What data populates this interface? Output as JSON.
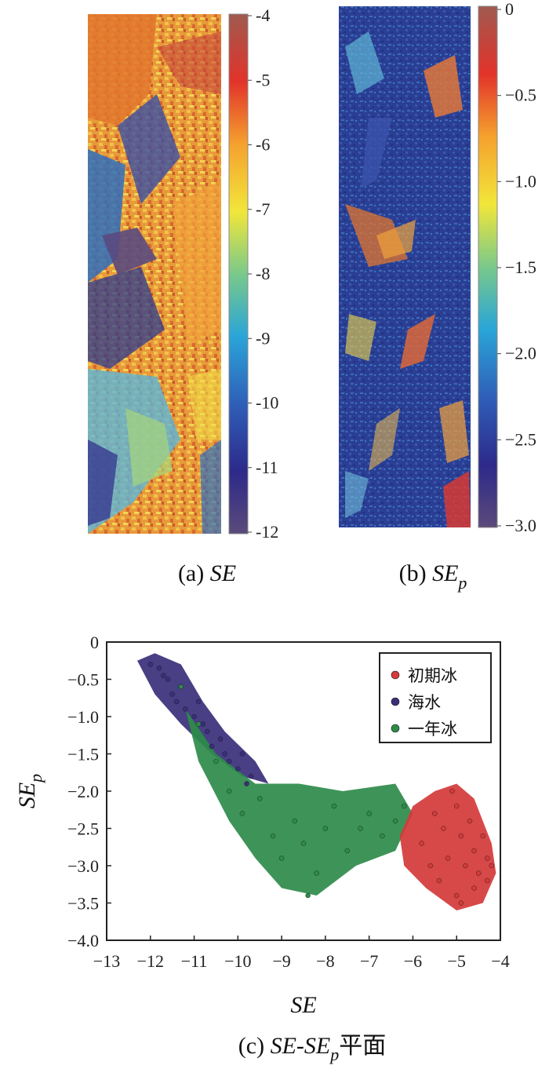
{
  "panel_a": {
    "caption_prefix": "(a) ",
    "caption_var": "SE",
    "colorbar": {
      "ticks": [
        "-4",
        "-5",
        "-6",
        "-7",
        "-8",
        "-9",
        "-10",
        "-11",
        "-12"
      ],
      "range": [
        -12,
        -4
      ]
    }
  },
  "panel_b": {
    "caption_prefix": "(b) ",
    "caption_var": "SE",
    "caption_sub": "p",
    "colorbar": {
      "ticks": [
        "0",
        "−0.5",
        "−1.0",
        "−1.5",
        "−2.0",
        "−2.5",
        "−3.0"
      ],
      "range": [
        -3.0,
        0
      ]
    }
  },
  "panel_c": {
    "caption_prefix": "(c) ",
    "caption_var": "SE-SE",
    "caption_sub": "p",
    "caption_suffix": "平面"
  },
  "chart_data": {
    "type": "scatter",
    "xlabel": "SE",
    "ylabel": "SE",
    "ylabel_sub": "p",
    "xlim": [
      -13,
      -4
    ],
    "ylim": [
      -4.0,
      0
    ],
    "xticks": [
      -13,
      -12,
      -11,
      -10,
      -9,
      -8,
      -7,
      -6,
      -5,
      -4
    ],
    "yticks": [
      0,
      -0.5,
      -1.0,
      -1.5,
      -2.0,
      -2.5,
      -3.0,
      -3.5,
      -4.0
    ],
    "xtick_labels": [
      "−13",
      "−12",
      "−11",
      "−10",
      "−9",
      "−8",
      "−7",
      "−6",
      "−5",
      "−4"
    ],
    "ytick_labels": [
      "0",
      "−0.5",
      "−1.0",
      "−1.5",
      "−2.0",
      "−2.5",
      "−3.0",
      "−3.5",
      "−4.0"
    ],
    "legend_position": "top-right",
    "series": [
      {
        "name": "初期冰",
        "color": "#d43a3a",
        "points": [
          [
            -5.8,
            -2.7
          ],
          [
            -5.5,
            -2.3
          ],
          [
            -5.3,
            -2.5
          ],
          [
            -5.2,
            -2.9
          ],
          [
            -5.0,
            -2.2
          ],
          [
            -4.9,
            -2.6
          ],
          [
            -4.8,
            -3.0
          ],
          [
            -4.7,
            -2.4
          ],
          [
            -4.6,
            -2.8
          ],
          [
            -4.5,
            -3.1
          ],
          [
            -4.4,
            -2.6
          ],
          [
            -4.3,
            -2.9
          ],
          [
            -4.2,
            -3.0
          ],
          [
            -4.6,
            -3.3
          ],
          [
            -5.0,
            -3.4
          ],
          [
            -5.4,
            -3.2
          ],
          [
            -5.6,
            -3.0
          ],
          [
            -5.1,
            -2.0
          ],
          [
            -4.9,
            -3.5
          ],
          [
            -4.3,
            -3.2
          ]
        ]
      },
      {
        "name": "海水",
        "color": "#3a2f7a",
        "points": [
          [
            -12.0,
            -0.3
          ],
          [
            -11.8,
            -0.35
          ],
          [
            -11.6,
            -0.5
          ],
          [
            -11.5,
            -0.7
          ],
          [
            -11.3,
            -0.6
          ],
          [
            -11.2,
            -0.9
          ],
          [
            -11.0,
            -1.0
          ],
          [
            -10.9,
            -0.8
          ],
          [
            -10.7,
            -1.2
          ],
          [
            -10.6,
            -1.4
          ],
          [
            -10.4,
            -1.3
          ],
          [
            -10.2,
            -1.6
          ],
          [
            -10.0,
            -1.7
          ],
          [
            -9.9,
            -1.5
          ],
          [
            -9.7,
            -1.8
          ],
          [
            -11.7,
            -0.45
          ],
          [
            -11.4,
            -0.8
          ],
          [
            -10.8,
            -1.1
          ],
          [
            -10.3,
            -1.5
          ],
          [
            -9.8,
            -1.9
          ]
        ]
      },
      {
        "name": "一年冰",
        "color": "#2e8b4a",
        "points": [
          [
            -11.3,
            -0.6
          ],
          [
            -10.9,
            -1.1
          ],
          [
            -10.5,
            -1.6
          ],
          [
            -10.2,
            -2.0
          ],
          [
            -9.9,
            -2.3
          ],
          [
            -9.5,
            -2.1
          ],
          [
            -9.2,
            -2.6
          ],
          [
            -9.0,
            -2.9
          ],
          [
            -8.7,
            -2.4
          ],
          [
            -8.5,
            -2.7
          ],
          [
            -8.2,
            -3.1
          ],
          [
            -8.0,
            -2.5
          ],
          [
            -7.8,
            -2.2
          ],
          [
            -7.5,
            -2.8
          ],
          [
            -7.2,
            -2.5
          ],
          [
            -7.0,
            -2.3
          ],
          [
            -6.7,
            -2.6
          ],
          [
            -6.4,
            -2.4
          ],
          [
            -6.2,
            -2.2
          ],
          [
            -8.4,
            -3.4
          ]
        ]
      }
    ]
  }
}
